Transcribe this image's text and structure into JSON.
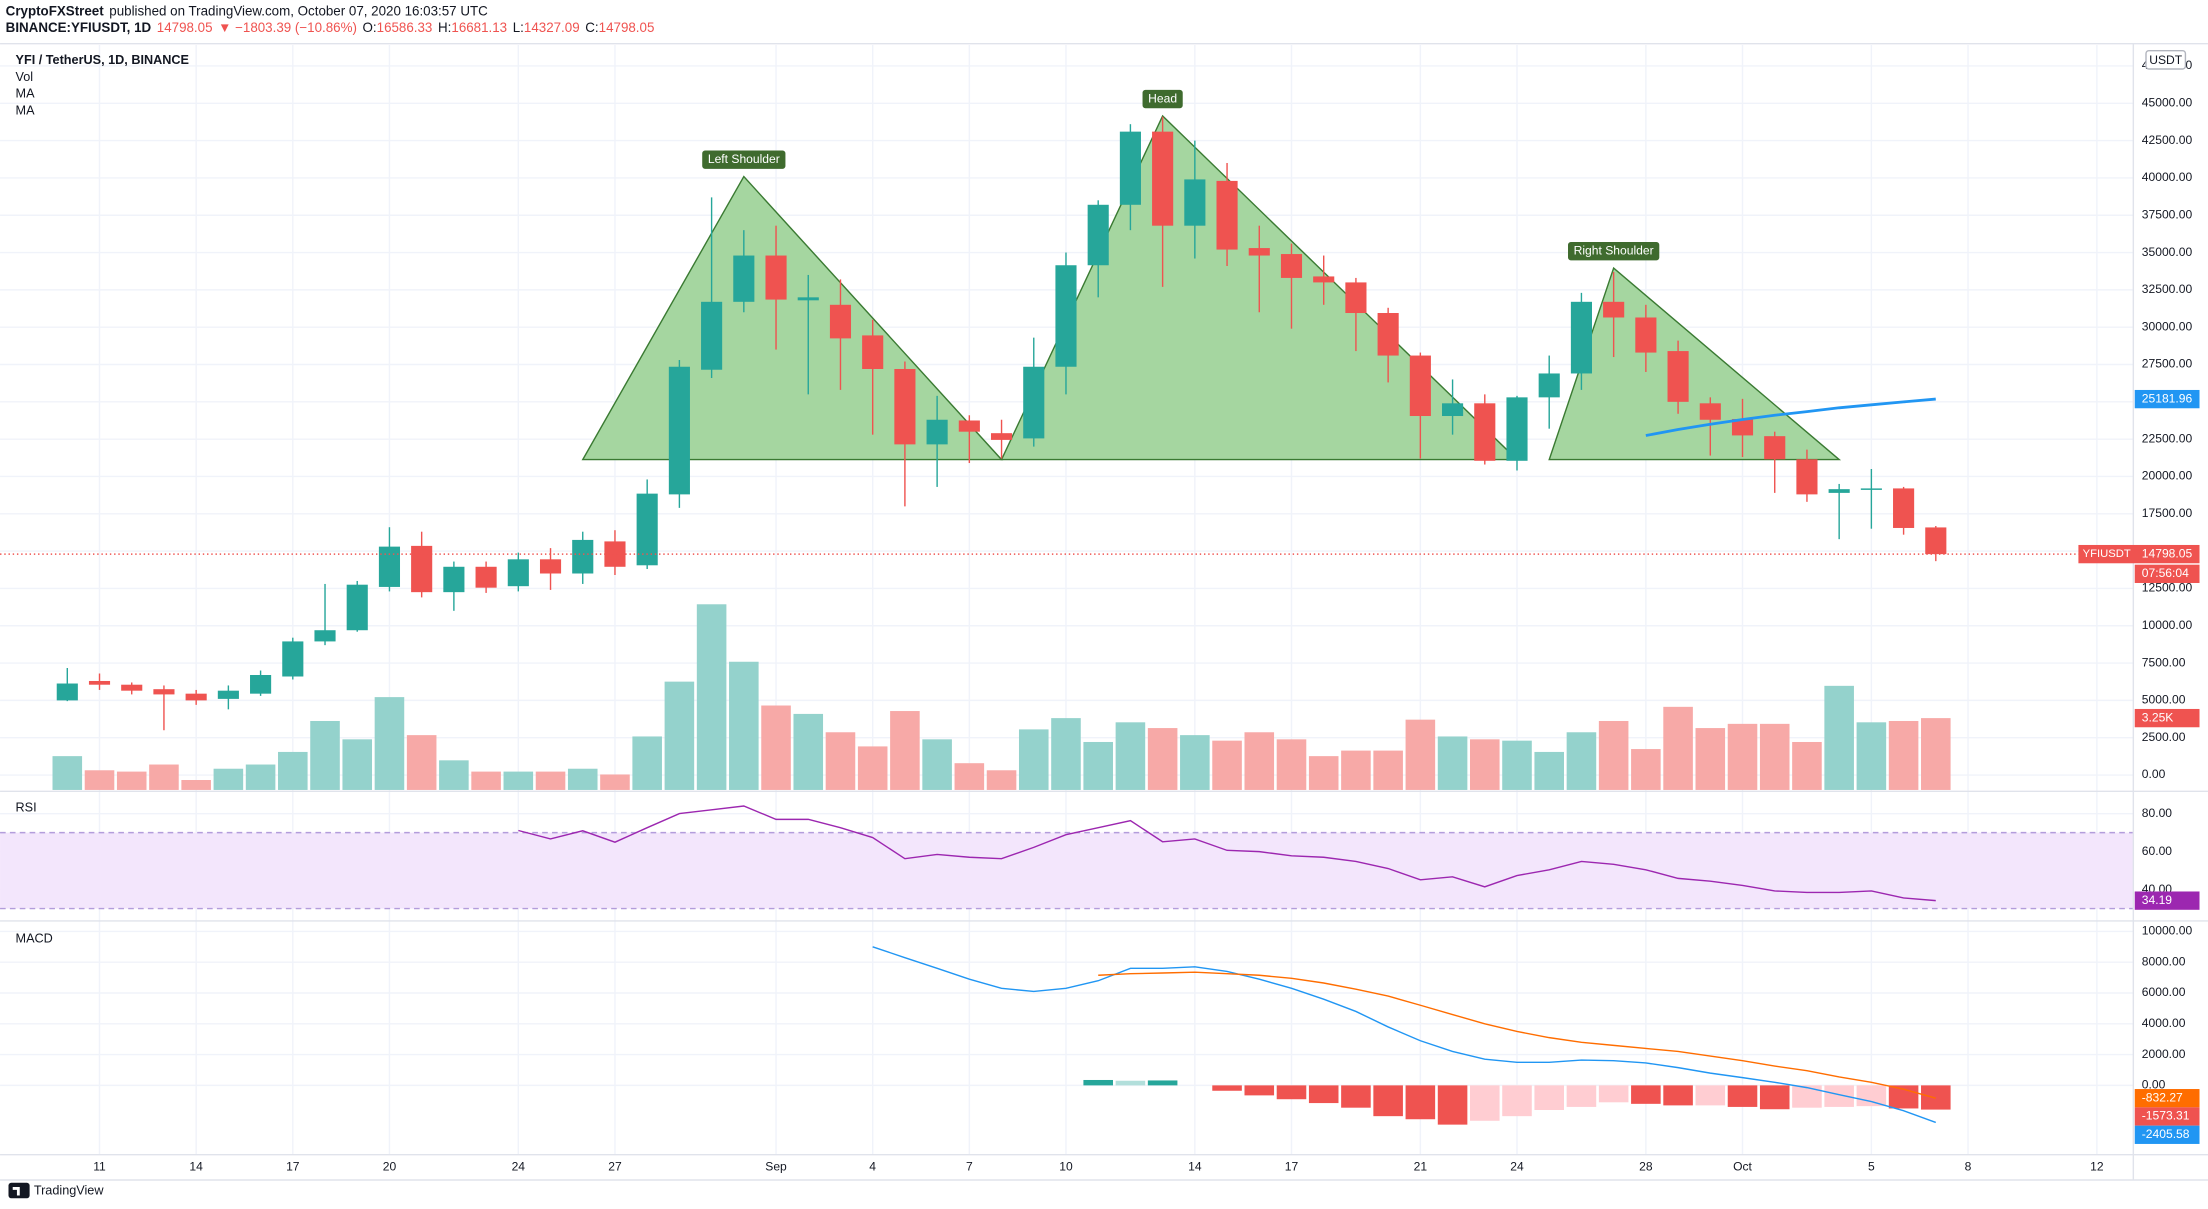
{
  "header": {
    "author": "CryptoFXStreet",
    "published": "published on TradingView.com, October 07, 2020 16:03:57 UTC",
    "symbol": "BINANCE:YFIUSDT, 1D",
    "price": "14798.05",
    "change": "▼ −1803.39 (−10.86%)",
    "ohlc": [
      {
        "key": "O:",
        "value": "16586.33"
      },
      {
        "key": "H:",
        "value": "16681.13"
      },
      {
        "key": "L:",
        "value": "14327.09"
      },
      {
        "key": "C:",
        "value": "14798.05"
      }
    ]
  },
  "footer": {
    "brand": "TradingView"
  },
  "chart_data": [
    {
      "type": "candlestick",
      "title": "YFI / TetherUS, 1D, BINANCE",
      "currency": "USDT",
      "last_price_label": "YFIUSDT",
      "countdown": "07:56:04",
      "up_color": "#26a69a",
      "down_color": "#ef5350",
      "grid": true,
      "x": [
        "2020-08-10",
        "2020-08-11",
        "2020-08-12",
        "2020-08-13",
        "2020-08-14",
        "2020-08-15",
        "2020-08-16",
        "2020-08-17",
        "2020-08-18",
        "2020-08-19",
        "2020-08-20",
        "2020-08-21",
        "2020-08-22",
        "2020-08-23",
        "2020-08-24",
        "2020-08-25",
        "2020-08-26",
        "2020-08-27",
        "2020-08-28",
        "2020-08-29",
        "2020-08-30",
        "2020-08-31",
        "2020-09-01",
        "2020-09-02",
        "2020-09-03",
        "2020-09-04",
        "2020-09-05",
        "2020-09-06",
        "2020-09-07",
        "2020-09-08",
        "2020-09-09",
        "2020-09-10",
        "2020-09-11",
        "2020-09-12",
        "2020-09-13",
        "2020-09-14",
        "2020-09-15",
        "2020-09-16",
        "2020-09-17",
        "2020-09-18",
        "2020-09-19",
        "2020-09-20",
        "2020-09-21",
        "2020-09-22",
        "2020-09-23",
        "2020-09-24",
        "2020-09-25",
        "2020-09-26",
        "2020-09-27",
        "2020-09-28",
        "2020-09-29",
        "2020-09-30",
        "2020-10-01",
        "2020-10-02",
        "2020-10-03",
        "2020-10-04",
        "2020-10-05",
        "2020-10-06",
        "2020-10-07"
      ],
      "open": [
        5000,
        6300,
        6050,
        5750,
        5450,
        5100,
        5450,
        6600,
        8950,
        9700,
        12600,
        15350,
        12250,
        13950,
        12650,
        14450,
        13500,
        15650,
        14050,
        18800,
        27150,
        31700,
        34800,
        31800,
        31500,
        29450,
        27200,
        22150,
        23750,
        22900,
        22550,
        27350,
        34150,
        38200,
        43100,
        36800,
        39800,
        35300,
        34900,
        33400,
        33000,
        30950,
        28100,
        24050,
        24900,
        21050,
        25300,
        26900,
        31700,
        30650,
        28400,
        24900,
        23850,
        22700,
        21150,
        18900,
        19100,
        19200,
        16586.33
      ],
      "high": [
        7170,
        6800,
        6200,
        6000,
        5700,
        6000,
        7000,
        9200,
        12800,
        13000,
        16600,
        16300,
        14300,
        14300,
        14900,
        15200,
        16300,
        16400,
        19800,
        27800,
        38700,
        36500,
        36800,
        33500,
        33200,
        30500,
        27700,
        25400,
        24100,
        23800,
        29300,
        35000,
        38500,
        43600,
        44100,
        42500,
        41000,
        36800,
        35600,
        34800,
        33300,
        31300,
        28300,
        26500,
        25500,
        25400,
        28100,
        32300,
        33700,
        31500,
        29100,
        25300,
        25200,
        23000,
        21800,
        19500,
        20500,
        19300,
        16681.13
      ],
      "low": [
        4950,
        5700,
        5400,
        3000,
        4700,
        4400,
        5300,
        6400,
        8700,
        9600,
        12300,
        11900,
        11000,
        12200,
        12300,
        12400,
        12800,
        13400,
        13800,
        17900,
        26600,
        31000,
        28500,
        25500,
        25800,
        22800,
        18000,
        19300,
        20900,
        21200,
        22000,
        25500,
        32000,
        36500,
        32700,
        34600,
        34100,
        31000,
        29900,
        31500,
        28400,
        26300,
        21200,
        22800,
        20800,
        20400,
        23200,
        25800,
        28000,
        27000,
        24200,
        21400,
        21300,
        18900,
        18300,
        15800,
        16500,
        16100,
        14327.09
      ],
      "close": [
        6130,
        6050,
        5650,
        5400,
        5000,
        5650,
        6700,
        8950,
        9700,
        12750,
        15300,
        12250,
        13950,
        12550,
        14450,
        13500,
        15750,
        13950,
        18850,
        27350,
        31700,
        34800,
        31850,
        32000,
        29250,
        27200,
        22150,
        23800,
        23000,
        22450,
        27350,
        34150,
        38200,
        43100,
        36800,
        39900,
        35200,
        34800,
        33300,
        33000,
        30950,
        28100,
        24050,
        24900,
        21050,
        25300,
        26900,
        31700,
        30650,
        28300,
        25000,
        23800,
        22750,
        21150,
        18800,
        19150,
        19200,
        16550,
        14798.05
      ],
      "xlim": [
        "2020-08-08",
        "2020-10-13"
      ],
      "xticks": [
        {
          "value": "2020-08-11",
          "label": "11"
        },
        {
          "value": "2020-08-14",
          "label": "14"
        },
        {
          "value": "2020-08-17",
          "label": "17"
        },
        {
          "value": "2020-08-20",
          "label": "20"
        },
        {
          "value": "2020-08-24",
          "label": "24"
        },
        {
          "value": "2020-08-27",
          "label": "27"
        },
        {
          "value": "2020-09-01",
          "label": "Sep"
        },
        {
          "value": "2020-09-04",
          "label": "4"
        },
        {
          "value": "2020-09-07",
          "label": "7"
        },
        {
          "value": "2020-09-10",
          "label": "10"
        },
        {
          "value": "2020-09-14",
          "label": "14"
        },
        {
          "value": "2020-09-17",
          "label": "17"
        },
        {
          "value": "2020-09-21",
          "label": "21"
        },
        {
          "value": "2020-09-24",
          "label": "24"
        },
        {
          "value": "2020-09-28",
          "label": "28"
        },
        {
          "value": "2020-10-01",
          "label": "Oct"
        },
        {
          "value": "2020-10-05",
          "label": "5"
        },
        {
          "value": "2020-10-08",
          "label": "8"
        },
        {
          "value": "2020-10-12",
          "label": "12"
        }
      ],
      "ylim": [
        -1000,
        48900
      ],
      "yticks": [
        {
          "value": 0,
          "label": "0.00"
        },
        {
          "value": 2500,
          "label": "2500.00"
        },
        {
          "value": 5000,
          "label": "5000.00"
        },
        {
          "value": 7500,
          "label": "7500.00"
        },
        {
          "value": 10000,
          "label": "10000.00"
        },
        {
          "value": 12500,
          "label": "12500.00"
        },
        {
          "value": 15000,
          "label": "15000.00"
        },
        {
          "value": 17500,
          "label": "17500.00"
        },
        {
          "value": 20000,
          "label": "20000.00"
        },
        {
          "value": 22500,
          "label": "22500.00"
        },
        {
          "value": 25000,
          "label": "25000.00"
        },
        {
          "value": 27500,
          "label": "27500.00"
        },
        {
          "value": 30000,
          "label": "30000.00"
        },
        {
          "value": 32500,
          "label": "32500.00"
        },
        {
          "value": 35000,
          "label": "35000.00"
        },
        {
          "value": 37500,
          "label": "37500.00"
        },
        {
          "value": 40000,
          "label": "40000.00"
        },
        {
          "value": 42500,
          "label": "42500.00"
        },
        {
          "value": 45000,
          "label": "45000.00"
        },
        {
          "value": 47500,
          "label": "47500.00"
        }
      ],
      "overlays": [
        {
          "name": "Vol",
          "type": "bar",
          "up_color": "#94d2cc",
          "down_color": "#f7a9a7",
          "ylim": [
            0,
            33.7
          ],
          "values": [
            1.53,
            0.89,
            0.83,
            1.15,
            0.45,
            0.96,
            1.15,
            1.72,
            3.12,
            2.29,
            4.2,
            2.48,
            1.34,
            0.83,
            0.83,
            0.83,
            0.96,
            0.7,
            2.42,
            4.9,
            8.4,
            5.8,
            3.82,
            3.44,
            2.61,
            1.97,
            3.57,
            2.29,
            1.21,
            0.89,
            2.74,
            3.25,
            2.17,
            3.06,
            2.8,
            2.48,
            2.23,
            2.61,
            2.29,
            1.53,
            1.78,
            1.78,
            3.18,
            2.42,
            2.29,
            2.23,
            1.72,
            2.61,
            3.12,
            1.85,
            3.76,
            2.8,
            2.99,
            2.99,
            2.17,
            4.71,
            3.06,
            3.12,
            3.25
          ],
          "value_labels": [
            null,
            null,
            null,
            null,
            null,
            null,
            null,
            null,
            null,
            null,
            null,
            null,
            null,
            null,
            null,
            null,
            null,
            null,
            null,
            null,
            null,
            null,
            null,
            null,
            null,
            null,
            null,
            null,
            null,
            null,
            null,
            null,
            null,
            null,
            null,
            null,
            null,
            null,
            null,
            null,
            null,
            null,
            null,
            null,
            null,
            null,
            null,
            null,
            null,
            null,
            null,
            null,
            null,
            null,
            null,
            null,
            null,
            null,
            "3.25K"
          ]
        },
        {
          "name": "MA",
          "type": "line",
          "color": "#2196f3",
          "values": [
            null,
            null,
            null,
            null,
            null,
            null,
            null,
            null,
            null,
            null,
            null,
            null,
            null,
            null,
            null,
            null,
            null,
            null,
            null,
            null,
            null,
            null,
            null,
            null,
            null,
            null,
            null,
            null,
            null,
            null,
            null,
            null,
            null,
            null,
            null,
            null,
            null,
            null,
            null,
            null,
            null,
            null,
            null,
            null,
            null,
            null,
            null,
            null,
            null,
            22740,
            23150,
            23500,
            23820,
            24100,
            24350,
            24600,
            24800,
            25000,
            25181.96
          ]
        },
        {
          "name": "MA"
        }
      ],
      "patterns": [
        {
          "label": "Left Shoulder",
          "fill": "#a5d6a0",
          "stroke": "#3a7a32",
          "points": [
            [
              "2020-08-26",
              21130
            ],
            [
              "2020-08-31",
              40090
            ],
            [
              "2020-09-08",
              21130
            ]
          ]
        },
        {
          "label": "Head",
          "fill": "#a5d6a0",
          "stroke": "#3a7a32",
          "points": [
            [
              "2020-09-08",
              21130
            ],
            [
              "2020-09-13",
              44150
            ],
            [
              "2020-09-24",
              21130
            ]
          ]
        },
        {
          "label": "Right Shoulder",
          "fill": "#a5d6a0",
          "stroke": "#3a7a32",
          "points": [
            [
              "2020-09-25",
              21130
            ],
            [
              "2020-09-27",
              33960
            ],
            [
              "2020-10-04",
              21130
            ]
          ]
        }
      ]
    },
    {
      "type": "line",
      "title": "RSI",
      "color": "#9c27b0",
      "band": [
        30,
        70
      ],
      "band_color": "#f3e6fc",
      "ylim": [
        25,
        91
      ],
      "yticks": [
        {
          "value": 40,
          "label": "40.00"
        },
        {
          "value": 60,
          "label": "60.00"
        },
        {
          "value": 80,
          "label": "80.00"
        }
      ],
      "values": [
        null,
        null,
        null,
        null,
        null,
        null,
        null,
        null,
        null,
        null,
        null,
        null,
        null,
        null,
        71.1,
        66.7,
        71,
        65,
        72.6,
        80,
        82,
        84,
        77,
        77,
        72.6,
        67.4,
        56.3,
        58.5,
        57,
        56.3,
        62.2,
        68.9,
        72.6,
        76.3,
        65.2,
        66.7,
        60.7,
        60,
        57.8,
        57,
        54.8,
        51.1,
        45.2,
        46.7,
        41.5,
        47.4,
        50.4,
        54.8,
        53.3,
        50.4,
        45.9,
        44.4,
        42.2,
        39.3,
        38.5,
        38.5,
        39.3,
        35.6,
        34.19
      ]
    },
    {
      "type": "macd",
      "title": "MACD",
      "ylim": [
        -4500,
        10500
      ],
      "yticks": [
        {
          "value": 0,
          "label": "0.00"
        },
        {
          "value": 2000,
          "label": "2000.00"
        },
        {
          "value": 4000,
          "label": "4000.00"
        },
        {
          "value": 6000,
          "label": "6000.00"
        },
        {
          "value": 8000,
          "label": "8000.00"
        },
        {
          "value": 10000,
          "label": "10000.00"
        }
      ],
      "macd": {
        "color": "#2196f3",
        "values": [
          null,
          null,
          null,
          null,
          null,
          null,
          null,
          null,
          null,
          null,
          null,
          null,
          null,
          null,
          null,
          null,
          null,
          null,
          null,
          null,
          null,
          null,
          null,
          null,
          null,
          9000,
          8300,
          7600,
          6900,
          6300,
          6100,
          6300,
          6800,
          7600,
          7600,
          7700,
          7400,
          6900,
          6300,
          5600,
          4800,
          3800,
          2900,
          2200,
          1700,
          1500,
          1500,
          1650,
          1600,
          1450,
          1150,
          800,
          500,
          200,
          -150,
          -600,
          -1050,
          -1650,
          -2405.58
        ]
      },
      "signal": {
        "color": "#ff6d00",
        "values": [
          null,
          null,
          null,
          null,
          null,
          null,
          null,
          null,
          null,
          null,
          null,
          null,
          null,
          null,
          null,
          null,
          null,
          null,
          null,
          null,
          null,
          null,
          null,
          null,
          null,
          null,
          null,
          null,
          null,
          null,
          null,
          null,
          7150,
          7250,
          7300,
          7350,
          7250,
          7150,
          6950,
          6650,
          6250,
          5800,
          5200,
          4600,
          4000,
          3500,
          3100,
          2800,
          2600,
          2400,
          2200,
          1900,
          1600,
          1250,
          950,
          550,
          200,
          -250,
          -832.27
        ]
      },
      "histogram": {
        "colors": [
          "#26a69a",
          "#b2dfdb",
          "#ffcdd2",
          "#ef5350"
        ],
        "values": [
          null,
          null,
          null,
          null,
          null,
          null,
          null,
          null,
          null,
          null,
          null,
          null,
          null,
          null,
          null,
          null,
          null,
          null,
          null,
          null,
          null,
          null,
          null,
          null,
          null,
          null,
          null,
          null,
          null,
          null,
          null,
          null,
          350,
          300,
          320,
          0,
          -350,
          -650,
          -900,
          -1150,
          -1450,
          -2000,
          -2200,
          -2550,
          -2300,
          -2000,
          -1600,
          -1400,
          -1100,
          -1200,
          -1300,
          -1300,
          -1400,
          -1550,
          -1450,
          -1400,
          -1350,
          -1500,
          -1573.31
        ]
      }
    }
  ]
}
